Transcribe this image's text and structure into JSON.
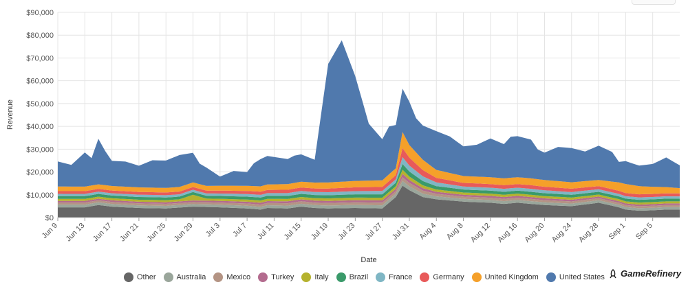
{
  "chart_data": {
    "type": "area",
    "stacked": true,
    "xlabel": "Date",
    "ylabel": "Revenue",
    "ylim": [
      0,
      90000
    ],
    "yticks": [
      "$0",
      "$10,000",
      "$20,000",
      "$30,000",
      "$40,000",
      "$50,000",
      "$60,000",
      "$70,000",
      "$80,000",
      "$90,000"
    ],
    "x_tick_labels": [
      "Jun 9",
      "Jun 13",
      "Jun 17",
      "Jun 21",
      "Jun 25",
      "Jun 29",
      "Jul 3",
      "Jul 7",
      "Jul 11",
      "Jul 15",
      "Jul 19",
      "Jul 23",
      "Jul 27",
      "Jul 31",
      "Aug 4",
      "Aug 8",
      "Aug 12",
      "Aug 16",
      "Aug 20",
      "Aug 24",
      "Aug 28",
      "Sep 1",
      "Sep 5"
    ],
    "x_tick_every_days": 4,
    "num_days": 93,
    "legend_position": "bottom",
    "series": [
      {
        "name": "Other",
        "color": "#666666",
        "key_days": [
          0,
          4,
          6,
          8,
          12,
          16,
          20,
          24,
          28,
          30,
          31,
          34,
          36,
          38,
          40,
          44,
          48,
          50,
          51,
          52,
          54,
          56,
          58,
          60,
          64,
          66,
          68,
          72,
          76,
          80,
          83,
          84,
          86,
          88,
          90,
          92
        ],
        "key_values": [
          4500,
          4500,
          5500,
          4800,
          4200,
          4000,
          4800,
          4500,
          4000,
          3500,
          4200,
          4000,
          4800,
          4200,
          4000,
          4200,
          4000,
          9000,
          14000,
          12000,
          9000,
          8000,
          7500,
          7000,
          6500,
          6000,
          6500,
          5500,
          5000,
          6500,
          4500,
          3500,
          3000,
          3200,
          3500,
          3500
        ]
      },
      {
        "name": "Australia",
        "color": "#9aa69b",
        "key_days": [
          0,
          20,
          50,
          51,
          52,
          56,
          60,
          70,
          80,
          92
        ],
        "key_values": [
          1200,
          1100,
          1400,
          2000,
          1700,
          1300,
          1200,
          1200,
          1100,
          1100
        ]
      },
      {
        "name": "Mexico",
        "color": "#b49484",
        "key_days": [
          0,
          20,
          50,
          51,
          52,
          56,
          60,
          70,
          80,
          92
        ],
        "key_values": [
          900,
          900,
          1200,
          1700,
          1500,
          1100,
          1000,
          1000,
          900,
          900
        ]
      },
      {
        "name": "Turkey",
        "color": "#b36b8e",
        "key_days": [
          0,
          20,
          50,
          51,
          52,
          56,
          60,
          70,
          80,
          92
        ],
        "key_values": [
          700,
          700,
          1000,
          1500,
          1300,
          900,
          800,
          800,
          700,
          700
        ]
      },
      {
        "name": "Italy",
        "color": "#b5b22e",
        "key_days": [
          0,
          18,
          20,
          22,
          50,
          51,
          52,
          56,
          60,
          70,
          80,
          92
        ],
        "key_values": [
          900,
          900,
          2500,
          900,
          1200,
          1800,
          1500,
          1000,
          1000,
          1000,
          900,
          900
        ]
      },
      {
        "name": "Brazil",
        "color": "#3a9a6a",
        "key_days": [
          0,
          20,
          50,
          51,
          52,
          56,
          60,
          70,
          80,
          92
        ],
        "key_values": [
          1200,
          1200,
          1500,
          2500,
          2200,
          1500,
          1300,
          1300,
          1200,
          1200
        ]
      },
      {
        "name": "France",
        "color": "#7fb6c4",
        "key_days": [
          0,
          20,
          50,
          51,
          52,
          56,
          60,
          70,
          80,
          92
        ],
        "key_values": [
          1000,
          1000,
          1500,
          3000,
          2600,
          1600,
          1300,
          1300,
          1100,
          1000
        ]
      },
      {
        "name": "Germany",
        "color": "#e85a5a",
        "key_days": [
          0,
          20,
          50,
          51,
          52,
          56,
          60,
          70,
          80,
          92
        ],
        "key_values": [
          1200,
          1200,
          1800,
          4000,
          3500,
          2000,
          1600,
          1600,
          1400,
          1300
        ]
      },
      {
        "name": "United Kingdom",
        "color": "#f5a02a",
        "key_days": [
          0,
          20,
          50,
          51,
          52,
          56,
          60,
          70,
          80,
          84,
          92
        ],
        "key_values": [
          2000,
          2000,
          3000,
          7000,
          5500,
          3500,
          3000,
          3000,
          2700,
          4000,
          2300
        ]
      },
      {
        "name": "United States",
        "color": "#5079ad",
        "key_days": [
          0,
          2,
          4,
          5,
          6,
          7,
          8,
          9,
          10,
          12,
          14,
          16,
          18,
          20,
          21,
          22,
          24,
          26,
          28,
          29,
          30,
          31,
          32,
          34,
          35,
          36,
          38,
          40,
          42,
          44,
          46,
          48,
          49,
          50,
          51,
          52,
          53,
          54,
          56,
          58,
          60,
          62,
          64,
          66,
          67,
          68,
          70,
          71,
          72,
          74,
          76,
          78,
          80,
          82,
          83,
          84,
          86,
          88,
          90,
          92
        ],
        "key_values": [
          11000,
          9500,
          15000,
          12000,
          20000,
          15000,
          11000,
          11000,
          11000,
          9500,
          12000,
          12000,
          14000,
          13000,
          9000,
          8000,
          4000,
          6500,
          6000,
          10000,
          12000,
          12500,
          12000,
          11000,
          12000,
          12000,
          10000,
          52000,
          62000,
          46000,
          25000,
          18000,
          21000,
          19000,
          19000,
          19000,
          15000,
          15000,
          17000,
          16000,
          13000,
          14000,
          17000,
          15000,
          18000,
          18000,
          17000,
          13000,
          12000,
          15000,
          15000,
          13000,
          15000,
          13000,
          9000,
          10000,
          9000,
          10000,
          13000,
          10000
        ]
      }
    ]
  }
}
